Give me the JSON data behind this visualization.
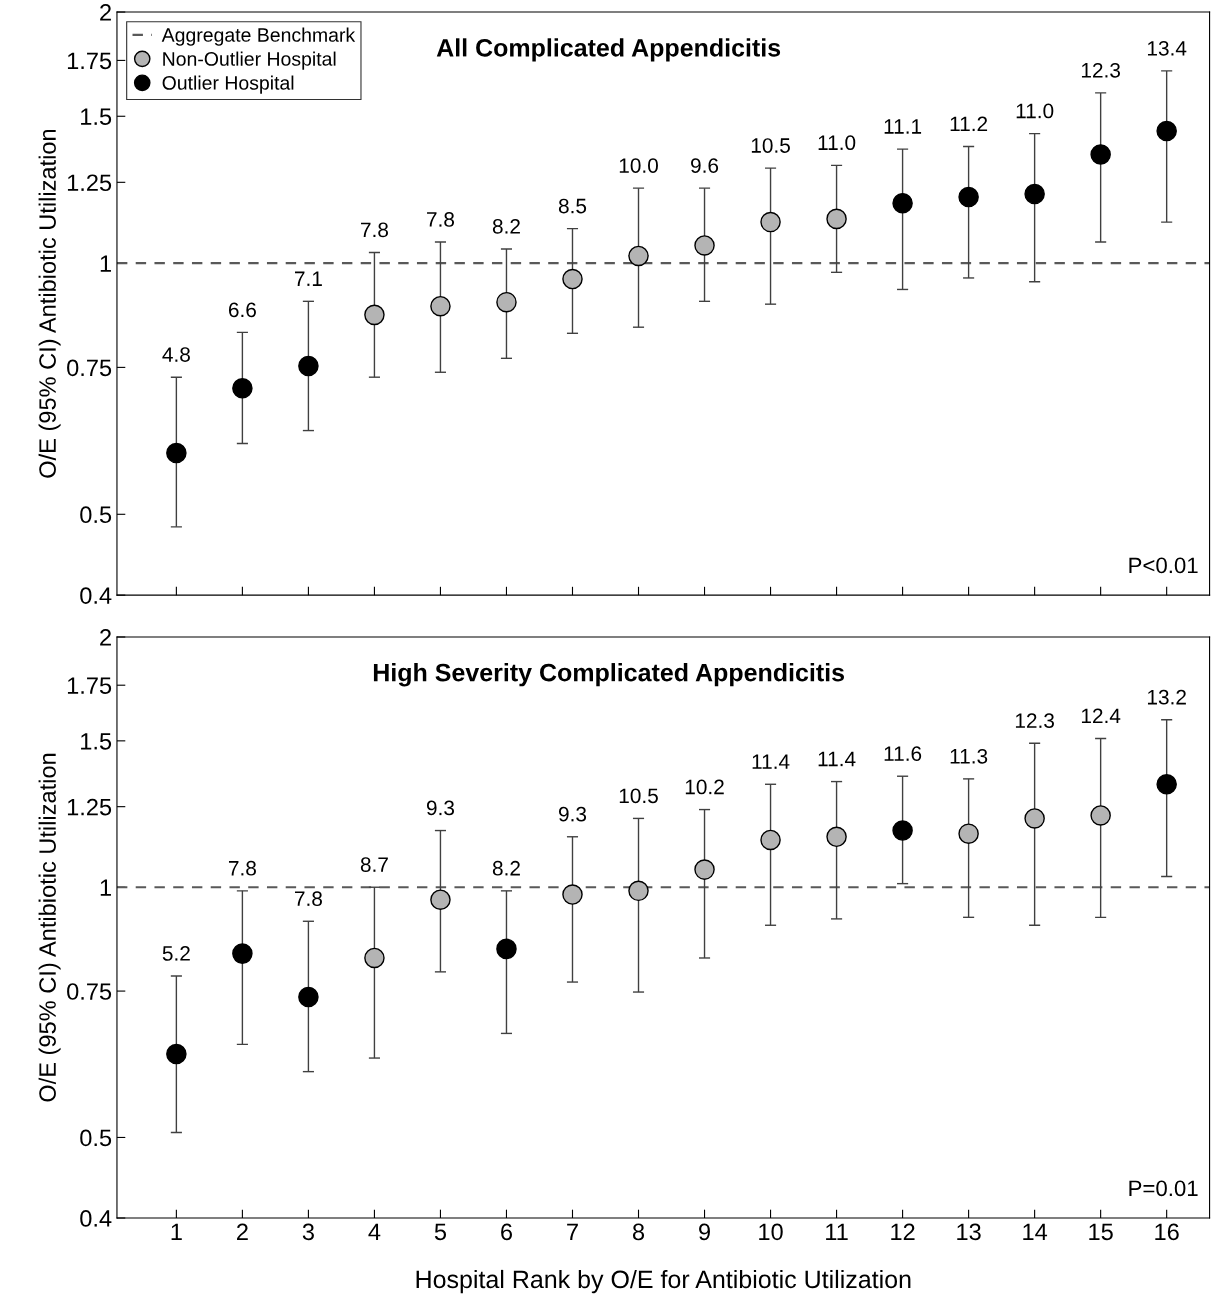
{
  "chart_data": [
    {
      "type": "scatter",
      "title": "All Complicated Appendicitis",
      "ylabel": "O/E (95% CI) Antibiotic Utilization",
      "categories": [
        "1",
        "2",
        "3",
        "4",
        "5",
        "6",
        "7",
        "8",
        "9",
        "10",
        "11",
        "12",
        "13",
        "14",
        "15",
        "16"
      ],
      "log": "y",
      "ylim": [
        0.4,
        2
      ],
      "yticks": [
        0.4,
        0.5,
        0.75,
        1,
        1.25,
        1.5,
        1.75,
        2
      ],
      "tick_labels": "y",
      "legend": "top left",
      "marker": "circle",
      "grid": false,
      "series": [
        {
          "name": "Non-Outlier Hospital",
          "color": "#b4b4b4",
          "values": [
            null,
            null,
            null,
            0.867,
            0.888,
            0.898,
            0.957,
            1.02,
            1.05,
            1.12,
            1.13,
            null,
            null,
            null,
            null,
            null
          ],
          "errors": [
            null,
            null,
            null,
            [
              0.73,
              1.03
            ],
            [
              0.74,
              1.06
            ],
            [
              0.769,
              1.04
            ],
            [
              0.824,
              1.1
            ],
            [
              0.838,
              1.23
            ],
            [
              0.9,
              1.23
            ],
            [
              0.893,
              1.3
            ],
            [
              0.975,
              1.31
            ],
            null,
            null,
            null,
            null,
            null
          ]
        },
        {
          "name": "Outlier Hospital",
          "color": "#000000",
          "values": [
            0.592,
            0.708,
            0.753,
            null,
            null,
            null,
            null,
            null,
            null,
            null,
            null,
            1.18,
            1.2,
            1.21,
            1.35,
            1.44
          ],
          "errors": [
            [
              0.483,
              0.73
            ],
            [
              0.608,
              0.826
            ],
            [
              0.63,
              0.9
            ],
            null,
            null,
            null,
            null,
            null,
            null,
            null,
            null,
            [
              0.93,
              1.37
            ],
            [
              0.96,
              1.38
            ],
            [
              0.95,
              1.43
            ],
            [
              1.06,
              1.6
            ],
            [
              1.12,
              1.7
            ]
          ]
        }
      ],
      "ref_lines": [
        {
          "axis": "y",
          "value": 1,
          "label": "Aggregate Benchmark",
          "color": "#595959",
          "line_style": "dashed"
        }
      ],
      "annotations": [
        {
          "text": "4.8",
          "x": "1",
          "y": 0.73
        },
        {
          "text": "6.6",
          "x": "2",
          "y": 0.826
        },
        {
          "text": "7.1",
          "x": "3",
          "y": 0.9
        },
        {
          "text": "7.8",
          "x": "4",
          "y": 1.03
        },
        {
          "text": "7.8",
          "x": "5",
          "y": 1.06
        },
        {
          "text": "8.2",
          "x": "6",
          "y": 1.04
        },
        {
          "text": "8.5",
          "x": "7",
          "y": 1.1
        },
        {
          "text": "10.0",
          "x": "8",
          "y": 1.23
        },
        {
          "text": "9.6",
          "x": "9",
          "y": 1.23
        },
        {
          "text": "10.5",
          "x": "10",
          "y": 1.3
        },
        {
          "text": "11.0",
          "x": "11",
          "y": 1.31
        },
        {
          "text": "11.1",
          "x": "12",
          "y": 1.37
        },
        {
          "text": "11.2",
          "x": "13",
          "y": 1.38
        },
        {
          "text": "11.0",
          "x": "14",
          "y": 1.43
        },
        {
          "text": "12.3",
          "x": "15",
          "y": 1.6
        },
        {
          "text": "13.4",
          "x": "16",
          "y": 1.7
        },
        "P<0.01"
      ]
    },
    {
      "type": "scatter",
      "title": "High Severity Complicated Appendicitis",
      "xlabel": "Hospital Rank by O/E for Antibiotic Utilization",
      "ylabel": "O/E (95% CI) Antibiotic Utilization",
      "categories": [
        "1",
        "2",
        "3",
        "4",
        "5",
        "6",
        "7",
        "8",
        "9",
        "10",
        "11",
        "12",
        "13",
        "14",
        "15",
        "16"
      ],
      "log": "y",
      "ylim": [
        0.4,
        2
      ],
      "yticks": [
        0.4,
        0.5,
        0.75,
        1,
        1.25,
        1.5,
        1.75,
        2
      ],
      "marker": "circle",
      "grid": false,
      "series": [
        {
          "color": "#b4b4b4",
          "values": [
            null,
            null,
            null,
            0.822,
            0.966,
            null,
            0.98,
            0.99,
            1.05,
            1.14,
            1.15,
            null,
            1.16,
            1.21,
            1.22,
            null
          ],
          "errors": [
            null,
            null,
            null,
            [
              0.623,
              1.0
            ],
            [
              0.791,
              1.17
            ],
            null,
            [
              0.769,
              1.15
            ],
            [
              0.748,
              1.21
            ],
            [
              0.822,
              1.24
            ],
            [
              0.9,
              1.33
            ],
            [
              0.916,
              1.34
            ],
            null,
            [
              0.92,
              1.35
            ],
            [
              0.9,
              1.49
            ],
            [
              0.92,
              1.51
            ],
            null
          ]
        },
        {
          "color": "#000000",
          "values": [
            0.63,
            0.832,
            0.738,
            null,
            null,
            0.843,
            null,
            null,
            null,
            null,
            null,
            1.17,
            null,
            null,
            null,
            1.33
          ],
          "errors": [
            [
              0.507,
              0.782
            ],
            [
              0.647,
              0.99
            ],
            [
              0.6,
              0.91
            ],
            null,
            null,
            [
              0.667,
              0.99
            ],
            null,
            null,
            null,
            null,
            null,
            [
              1.01,
              1.36
            ],
            null,
            null,
            null,
            [
              1.03,
              1.59
            ]
          ]
        }
      ],
      "ref_lines": [
        {
          "axis": "y",
          "value": 1,
          "color": "#595959",
          "line_style": "dashed"
        }
      ],
      "annotations": [
        {
          "text": "5.2",
          "x": "1",
          "y": 0.782
        },
        {
          "text": "7.8",
          "x": "2",
          "y": 0.99
        },
        {
          "text": "7.8",
          "x": "3",
          "y": 0.91
        },
        {
          "text": "8.7",
          "x": "4",
          "y": 1.0
        },
        {
          "text": "9.3",
          "x": "5",
          "y": 1.17
        },
        {
          "text": "8.2",
          "x": "6",
          "y": 0.99
        },
        {
          "text": "9.3",
          "x": "7",
          "y": 1.15
        },
        {
          "text": "10.5",
          "x": "8",
          "y": 1.21
        },
        {
          "text": "10.2",
          "x": "9",
          "y": 1.24
        },
        {
          "text": "11.4",
          "x": "10",
          "y": 1.33
        },
        {
          "text": "11.4",
          "x": "11",
          "y": 1.34
        },
        {
          "text": "11.6",
          "x": "12",
          "y": 1.36
        },
        {
          "text": "11.3",
          "x": "13",
          "y": 1.35
        },
        {
          "text": "12.3",
          "x": "14",
          "y": 1.49
        },
        {
          "text": "12.4",
          "x": "15",
          "y": 1.51
        },
        {
          "text": "13.2",
          "x": "16",
          "y": 1.59
        },
        "P=0.01"
      ]
    }
  ]
}
